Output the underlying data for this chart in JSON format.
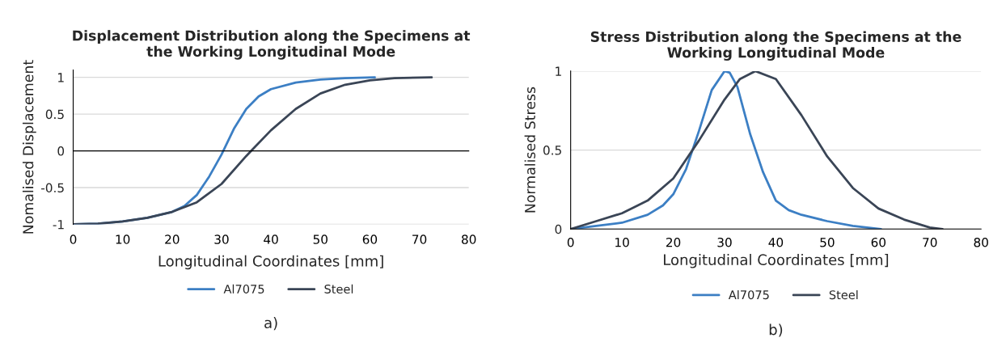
{
  "chart_data": [
    {
      "type": "line",
      "title": "Displacement Distribution along the Specimens at\nthe Working Longitudinal Mode",
      "xlabel": "Longitudinal Coordinates [mm]",
      "ylabel": "Nomalised Displacement",
      "xlim": [
        0,
        80
      ],
      "xticks": [
        0,
        10,
        20,
        30,
        40,
        50,
        60,
        70,
        80
      ],
      "ylim": [
        -1,
        1.1
      ],
      "yticks": [
        -1,
        -0.5,
        0,
        0.5,
        1
      ],
      "grid": "y",
      "legend": "bottom",
      "annotations": [
        "a)"
      ],
      "series": [
        {
          "name": "Al7075",
          "color": "#3c7fc4",
          "x": [
            0,
            5,
            10,
            15,
            20,
            22.5,
            25,
            27.5,
            30,
            32.5,
            35,
            37.5,
            40,
            45,
            50,
            55,
            61
          ],
          "values": [
            -1,
            -0.99,
            -0.96,
            -0.91,
            -0.83,
            -0.75,
            -0.6,
            -0.35,
            -0.05,
            0.3,
            0.57,
            0.74,
            0.84,
            0.93,
            0.97,
            0.99,
            1
          ]
        },
        {
          "name": "Steel",
          "color": "#3a4556",
          "x": [
            0,
            5,
            10,
            15,
            20,
            25,
            30,
            35,
            36,
            40,
            45,
            50,
            55,
            60,
            65,
            72.5
          ],
          "values": [
            -1,
            -0.99,
            -0.96,
            -0.91,
            -0.83,
            -0.7,
            -0.45,
            -0.07,
            0,
            0.28,
            0.57,
            0.78,
            0.9,
            0.96,
            0.99,
            1
          ]
        }
      ]
    },
    {
      "type": "line",
      "title": "Stress Distribution along the Specimens at the\nWorking Longitudinal Mode",
      "xlabel": "Longitudinal Coordinates [mm]",
      "ylabel": "Normalised Stress",
      "xlim": [
        0,
        80
      ],
      "xticks": [
        0,
        10,
        20,
        30,
        40,
        50,
        60,
        70,
        80
      ],
      "ylim": [
        0,
        1
      ],
      "yticks": [
        0,
        0.5,
        1
      ],
      "grid": "y",
      "legend": "bottom",
      "annotations": [
        "b)"
      ],
      "series": [
        {
          "name": "Al7075",
          "color": "#3c7fc4",
          "x": [
            0,
            5,
            10,
            15,
            18,
            20,
            22.5,
            25,
            27.5,
            30,
            31,
            32.5,
            35,
            37.5,
            40,
            42.5,
            45,
            50,
            55,
            60.5
          ],
          "values": [
            0,
            0.02,
            0.04,
            0.09,
            0.15,
            0.22,
            0.38,
            0.62,
            0.88,
            1,
            0.99,
            0.9,
            0.6,
            0.36,
            0.18,
            0.12,
            0.09,
            0.05,
            0.02,
            0
          ]
        },
        {
          "name": "Steel",
          "color": "#3a4556",
          "x": [
            0,
            5,
            10,
            15,
            20,
            25,
            30,
            33,
            36,
            40,
            45,
            50,
            55,
            60,
            65,
            70,
            72.5
          ],
          "values": [
            0,
            0.05,
            0.1,
            0.18,
            0.32,
            0.56,
            0.82,
            0.95,
            1,
            0.95,
            0.72,
            0.46,
            0.26,
            0.13,
            0.06,
            0.01,
            0
          ]
        }
      ]
    }
  ]
}
